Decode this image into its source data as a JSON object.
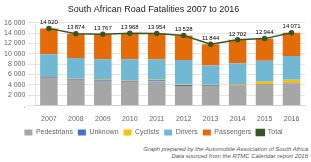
{
  "chart_data": {
    "type": "bar",
    "title": "South African Road Fatalities 2007 to 2016",
    "categories": [
      "2007",
      "2008",
      "2009",
      "2010",
      "2011",
      "2012",
      "2013",
      "2014",
      "2015",
      "2016"
    ],
    "stacked": true,
    "series": [
      {
        "name": "Pedestrians",
        "type": "bar",
        "color": "#a6a6a6",
        "values": [
          5400,
          5000,
          4800,
          4600,
          4700,
          3800,
          3800,
          3900,
          4000,
          4300
        ]
      },
      {
        "name": "Unknown",
        "type": "bar",
        "color": "#4472c4",
        "values": [
          200,
          200,
          200,
          200,
          200,
          200,
          150,
          150,
          100,
          100
        ]
      },
      {
        "name": "Cyclists",
        "type": "bar",
        "color": "#ffc000",
        "values": [
          100,
          100,
          100,
          100,
          100,
          100,
          100,
          100,
          500,
          600
        ]
      },
      {
        "name": "Drivers",
        "type": "bar",
        "color": "#70b8d4",
        "values": [
          4200,
          3874,
          3867,
          4068,
          3954,
          4728,
          3694,
          4052,
          4044,
          4571
        ]
      },
      {
        "name": "Passengers",
        "type": "bar",
        "color": "#e36c09",
        "values": [
          5020,
          4700,
          4800,
          5000,
          5000,
          4700,
          4100,
          4500,
          4300,
          4500
        ]
      },
      {
        "name": "Total",
        "type": "line",
        "color": "#375623",
        "marker": "circle",
        "line_style": "solid",
        "data_labels": true,
        "values": [
          14920,
          13874,
          13767,
          13968,
          13954,
          13528,
          11844,
          12702,
          12944,
          14071
        ],
        "value_labels": [
          "14 920",
          "13 874",
          "13 767",
          "13 968",
          "13 954",
          "13 528",
          "11 844",
          "12 702",
          "12 944",
          "14 071"
        ]
      }
    ],
    "ylim": [
      0,
      16000
    ],
    "yticks": [
      {
        "value": 0,
        "label": "."
      },
      {
        "value": 2000,
        "label": "2 000"
      },
      {
        "value": 4000,
        "label": "4 000"
      },
      {
        "value": 6000,
        "label": "6 000"
      },
      {
        "value": 8000,
        "label": "8 000"
      },
      {
        "value": 10000,
        "label": "10 000"
      },
      {
        "value": 12000,
        "label": "12 000"
      },
      {
        "value": 14000,
        "label": "14 000"
      },
      {
        "value": 16000,
        "label": "16 000"
      }
    ],
    "grid": true,
    "legend": "bottom",
    "annotations": [
      "Graph prepared by the Automobile Association of South Africa",
      "Data sourced from the RTMC Calendar report 2016"
    ]
  }
}
